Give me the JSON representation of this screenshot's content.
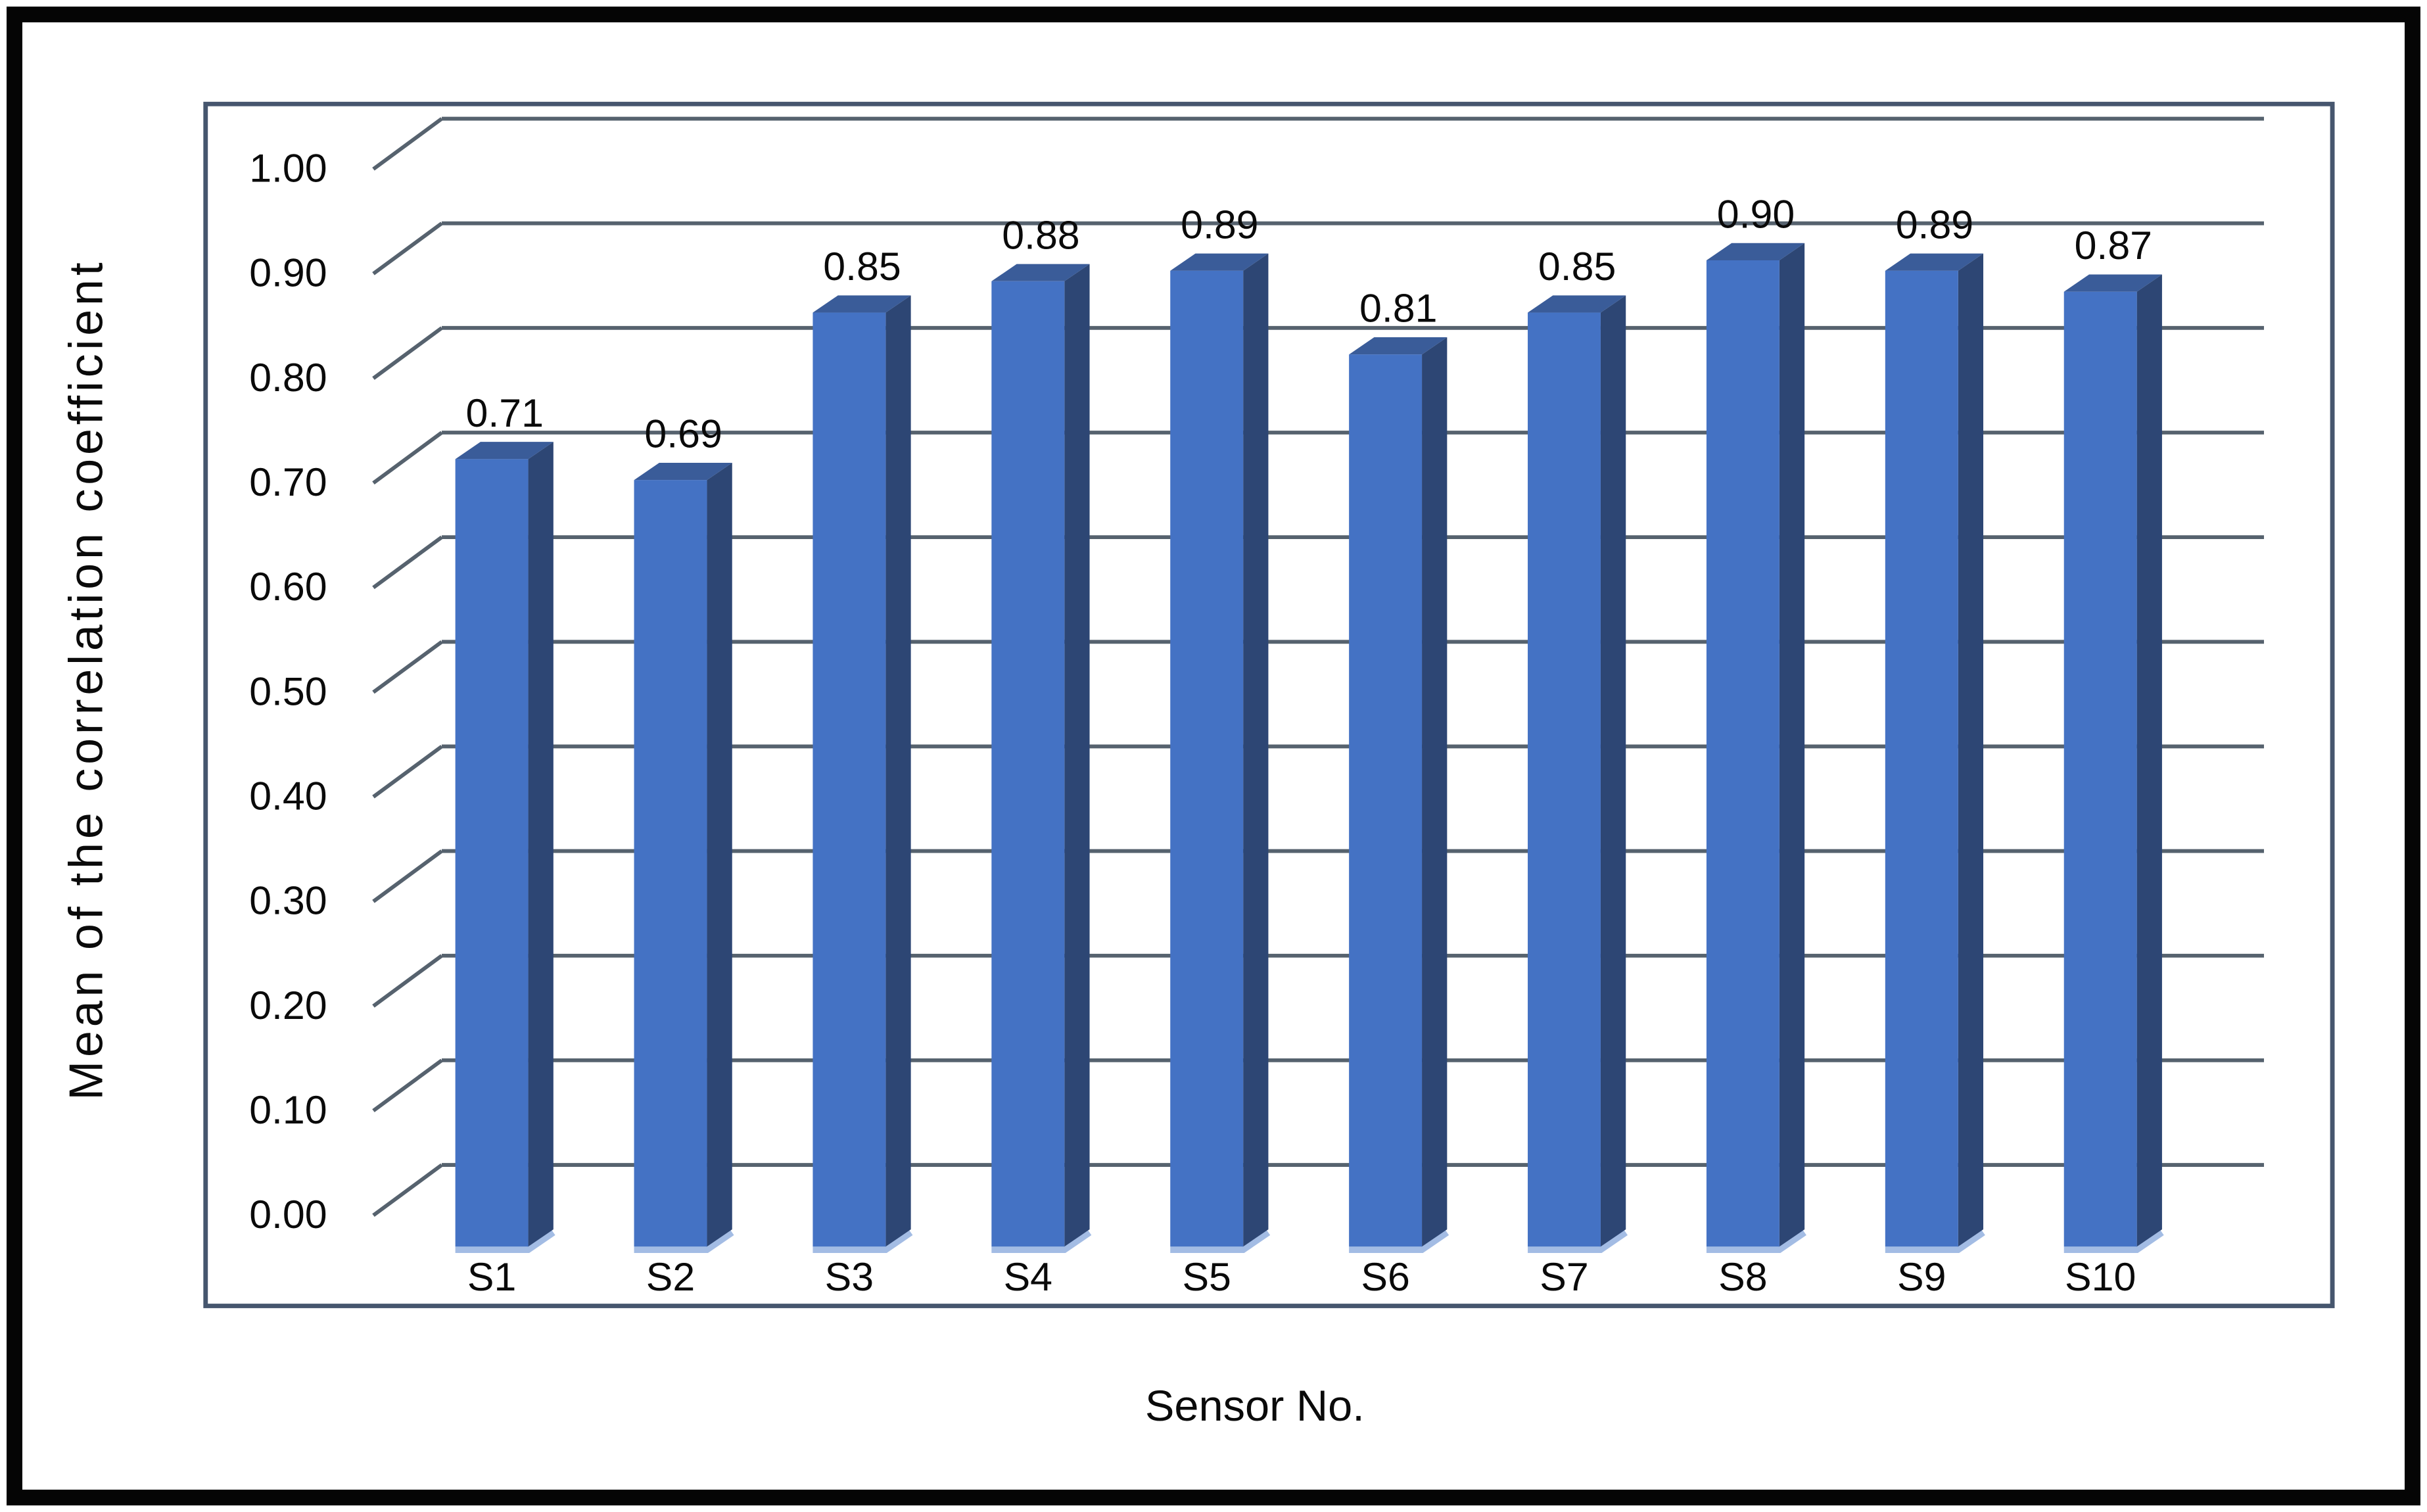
{
  "figure": {
    "background": "#ffffff",
    "outer_border_color": "#050505"
  },
  "chart_data": {
    "type": "bar",
    "style": "3d-column",
    "title": "",
    "xlabel": "Sensor No.",
    "ylabel": "Mean of the correlation coefficient",
    "categories": [
      "S1",
      "S2",
      "S3",
      "S4",
      "S5",
      "S6",
      "S7",
      "S8",
      "S9",
      "S10"
    ],
    "values": [
      0.71,
      0.69,
      0.85,
      0.88,
      0.89,
      0.81,
      0.85,
      0.9,
      0.89,
      0.87
    ],
    "data_labels": [
      "0.71",
      "0.69",
      "0.85",
      "0.88",
      "0.89",
      "0.81",
      "0.85",
      "0.90",
      "0.89",
      "0.87"
    ],
    "ylim": [
      0,
      1
    ],
    "ytick_step": 0.1,
    "ytick_labels": [
      "0.00",
      "0.10",
      "0.20",
      "0.30",
      "0.40",
      "0.50",
      "0.60",
      "0.70",
      "0.80",
      "0.90",
      "1.00"
    ],
    "grid": true,
    "legend": false,
    "colors": {
      "bar_front": "#4472C4",
      "bar_top": "#3A5C99",
      "bar_side": "#2D4674",
      "bar_base_highlight": "#A3BCE4",
      "gridline": "#56626E",
      "frame": "#46566E",
      "text": "#0a0a0a"
    }
  }
}
